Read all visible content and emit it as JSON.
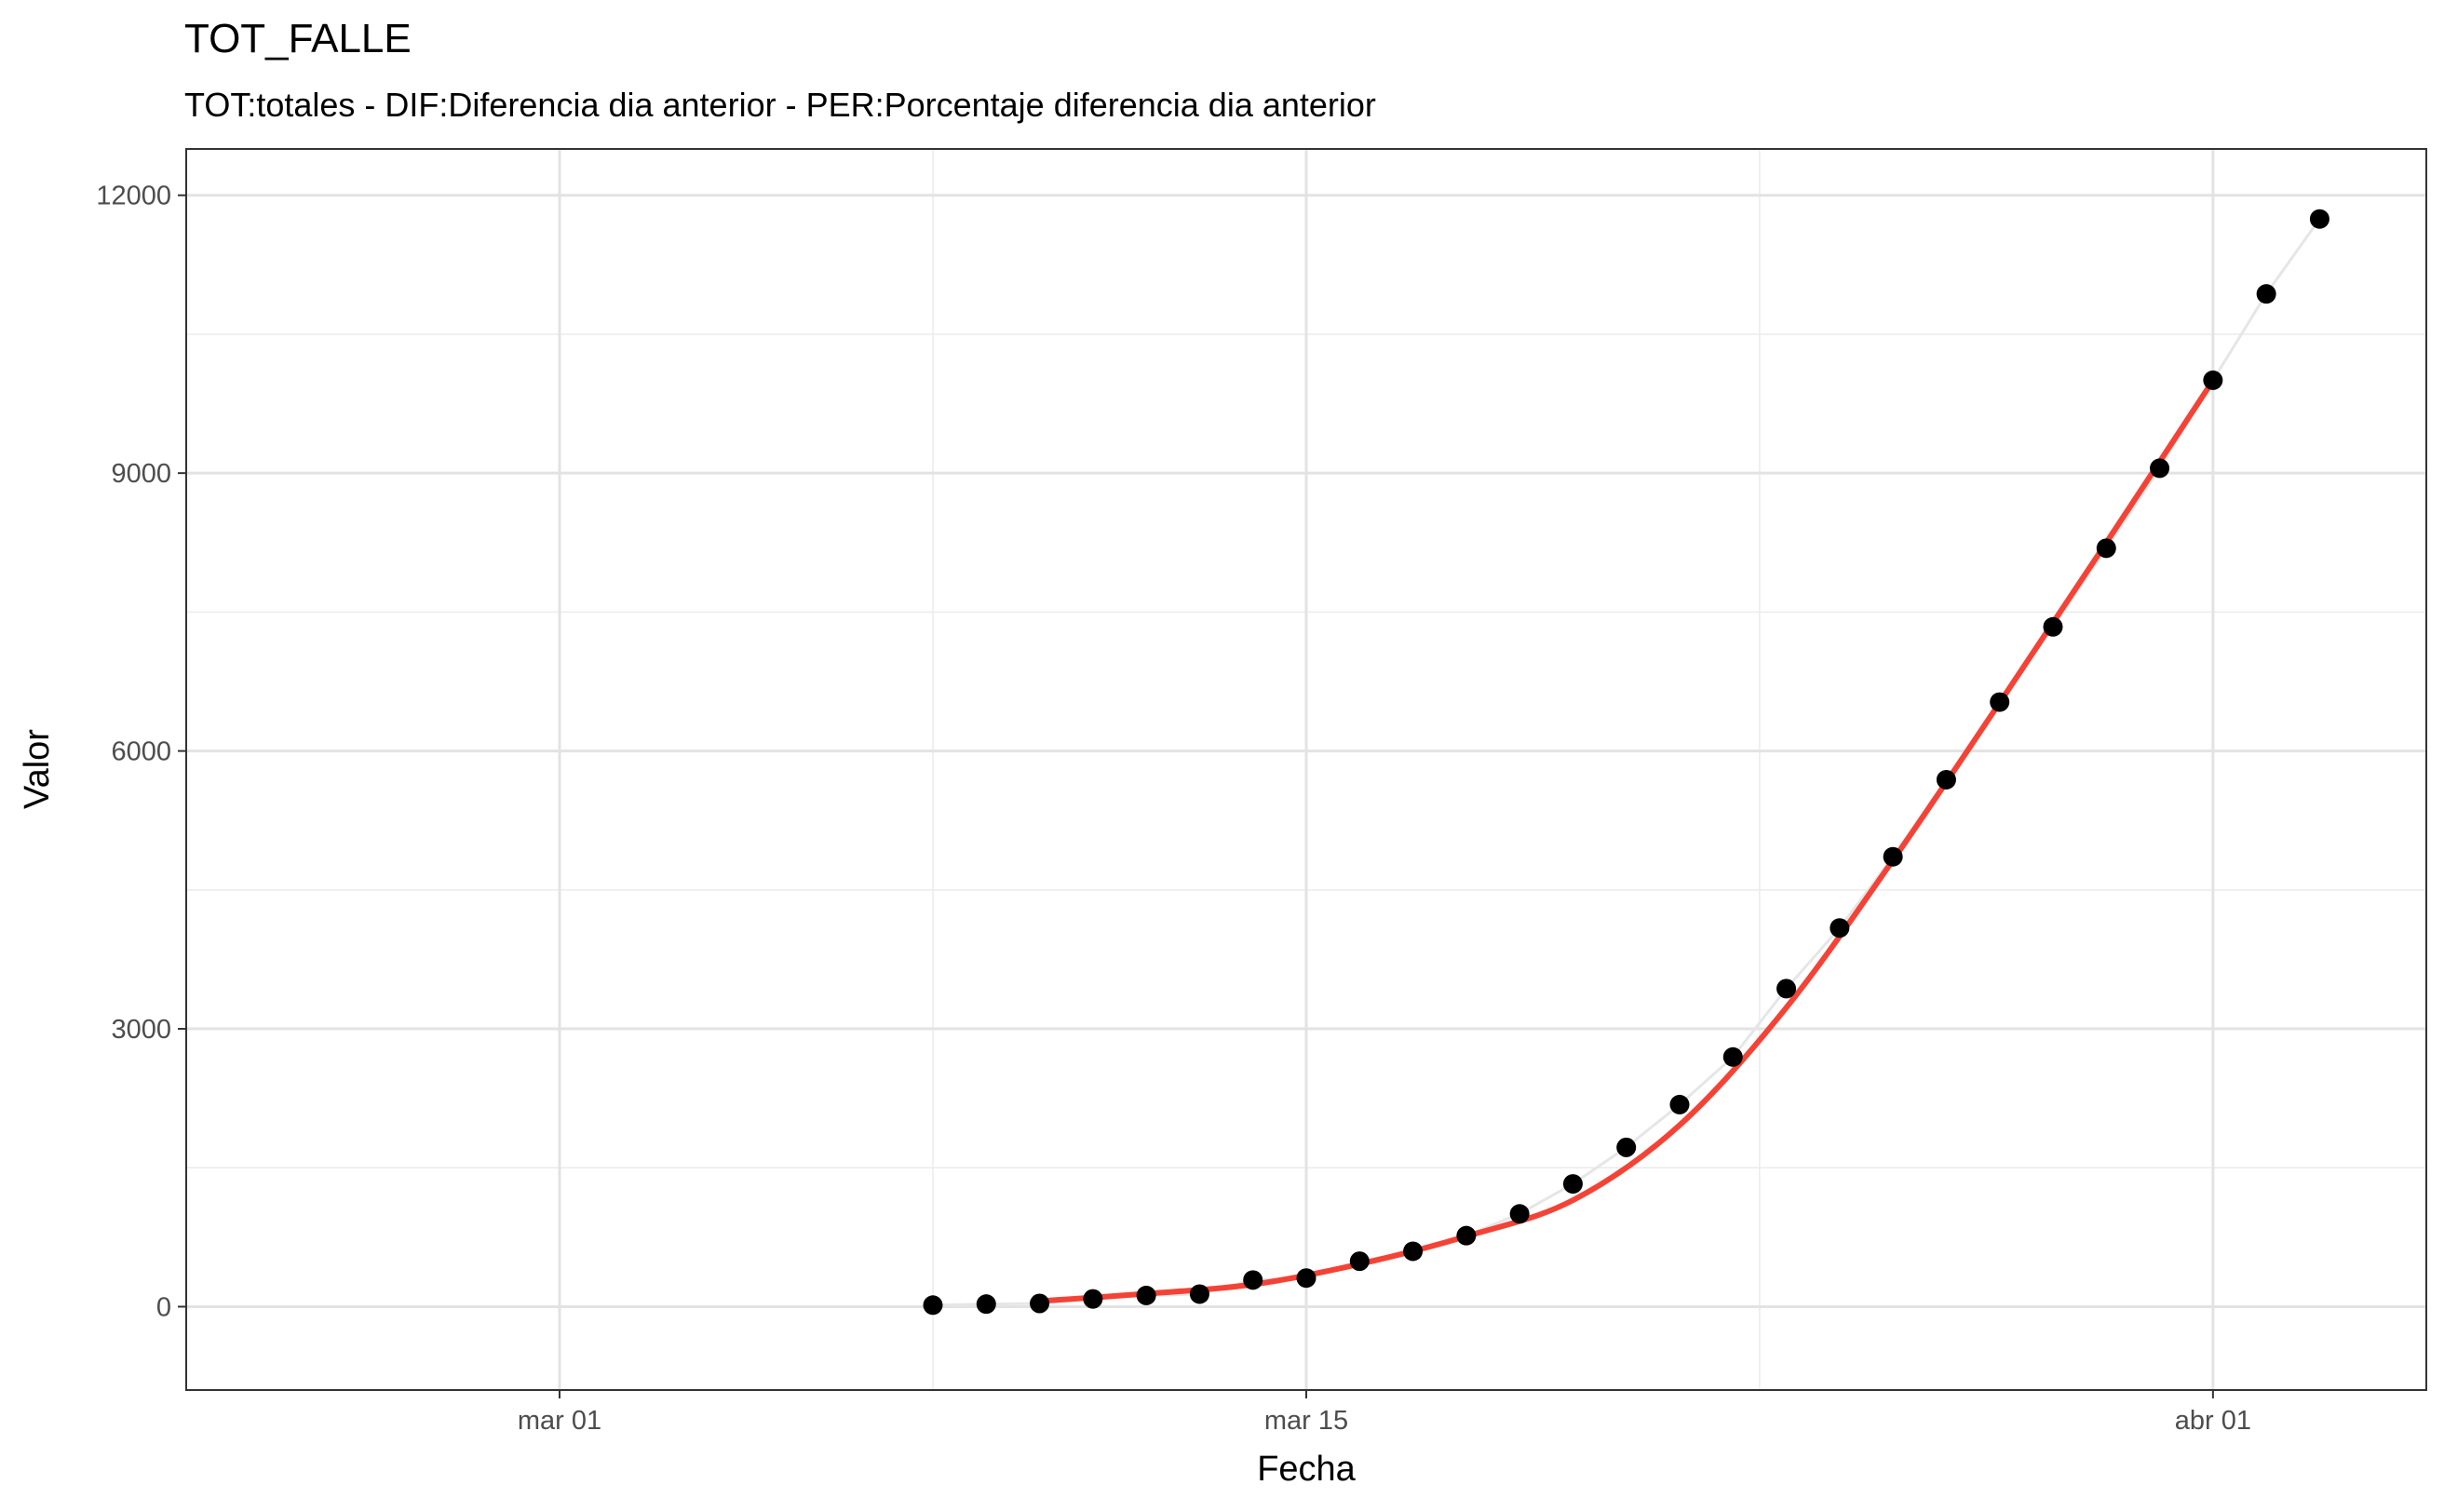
{
  "chart_data": {
    "type": "scatter",
    "title": "TOT_FALLE",
    "subtitle": "TOT:totales - DIF:Diferencia dia anterior - PER:Porcentaje diferencia dia anterior",
    "xlabel": "Fecha",
    "ylabel": "Valor",
    "x_range": [
      "2020-02-23",
      "2020-04-05"
    ],
    "ylim": [
      -900,
      12500
    ],
    "x_ticks": [
      {
        "date": "2020-03-01",
        "label": "mar 01"
      },
      {
        "date": "2020-03-15",
        "label": "mar 15"
      },
      {
        "date": "2020-04-01",
        "label": "abr 01"
      }
    ],
    "y_ticks": [
      0,
      3000,
      6000,
      9000,
      12000
    ],
    "grid": true,
    "colors": {
      "points": "#000000",
      "trend": "#f44336",
      "connector": "#e6e6e6"
    },
    "series": [
      {
        "values": [
          {
            "x": "2020-03-08",
            "y": 17
          },
          {
            "x": "2020-03-09",
            "y": 28
          },
          {
            "x": "2020-03-10",
            "y": 35
          },
          {
            "x": "2020-03-11",
            "y": 84
          },
          {
            "x": "2020-03-12",
            "y": 121
          },
          {
            "x": "2020-03-13",
            "y": 136
          },
          {
            "x": "2020-03-14",
            "y": 288
          },
          {
            "x": "2020-03-15",
            "y": 309
          },
          {
            "x": "2020-03-16",
            "y": 491
          },
          {
            "x": "2020-03-17",
            "y": 598
          },
          {
            "x": "2020-03-18",
            "y": 767
          },
          {
            "x": "2020-03-19",
            "y": 1002
          },
          {
            "x": "2020-03-20",
            "y": 1326
          },
          {
            "x": "2020-03-21",
            "y": 1720
          },
          {
            "x": "2020-03-22",
            "y": 2182
          },
          {
            "x": "2020-03-23",
            "y": 2696
          },
          {
            "x": "2020-03-24",
            "y": 3434
          },
          {
            "x": "2020-03-25",
            "y": 4089
          },
          {
            "x": "2020-03-26",
            "y": 4858
          },
          {
            "x": "2020-03-27",
            "y": 5690
          },
          {
            "x": "2020-03-28",
            "y": 6528
          },
          {
            "x": "2020-03-29",
            "y": 7340
          },
          {
            "x": "2020-03-30",
            "y": 8189
          },
          {
            "x": "2020-03-31",
            "y": 9053
          },
          {
            "x": "2020-04-01",
            "y": 10003
          },
          {
            "x": "2020-04-02",
            "y": 10935
          },
          {
            "x": "2020-04-03",
            "y": 11744
          }
        ]
      },
      {
        "type": "line",
        "values": [
          {
            "x": "2020-03-10",
            "y": 60
          },
          {
            "x": "2020-03-12",
            "y": 140
          },
          {
            "x": "2020-03-14",
            "y": 240
          },
          {
            "x": "2020-03-16",
            "y": 460
          },
          {
            "x": "2020-03-18",
            "y": 760
          },
          {
            "x": "2020-03-20",
            "y": 1150
          },
          {
            "x": "2020-03-22",
            "y": 1960
          },
          {
            "x": "2020-03-24",
            "y": 3230
          },
          {
            "x": "2020-03-26",
            "y": 4820
          },
          {
            "x": "2020-03-28",
            "y": 6520
          },
          {
            "x": "2020-03-30",
            "y": 8250
          },
          {
            "x": "2020-04-01",
            "y": 10000
          }
        ]
      }
    ]
  }
}
